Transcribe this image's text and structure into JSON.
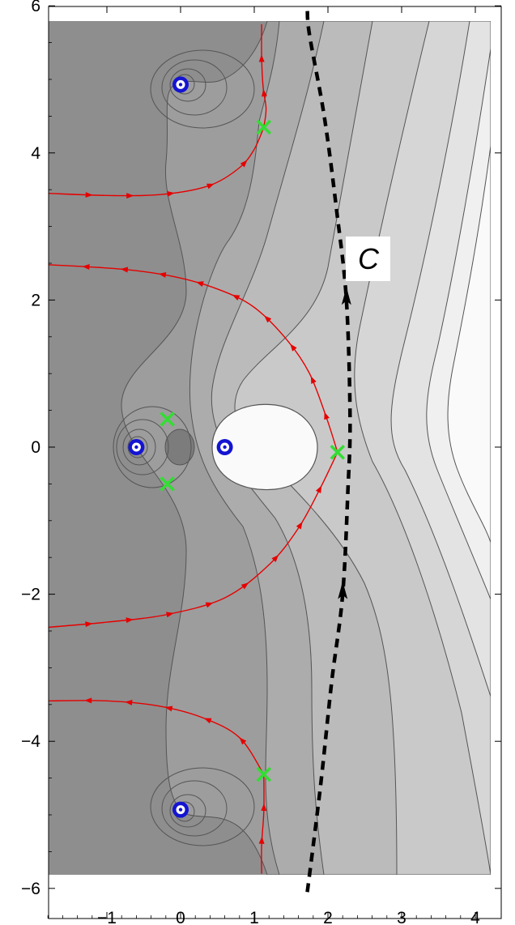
{
  "chart_data": {
    "type": "contour",
    "title": "",
    "xlabel": "",
    "ylabel": "",
    "xlim": [
      -1.8,
      4.2
    ],
    "ylim": [
      -5.8,
      5.8
    ],
    "frame_xlim": [
      -1.8,
      4.2
    ],
    "frame_ylim": [
      -6,
      6
    ],
    "grid": false,
    "x_ticks": [
      -1,
      0,
      1,
      2,
      3,
      4
    ],
    "x_tick_labels": [
      "−1",
      "0",
      "1",
      "2",
      "3",
      "4"
    ],
    "y_ticks": [
      -6,
      -4,
      -2,
      0,
      2,
      4,
      6
    ],
    "y_tick_labels": [
      "−6",
      "−4",
      "−2",
      "0",
      "2",
      "4",
      "6"
    ],
    "poles": [
      {
        "x": 0.0,
        "y": 4.93
      },
      {
        "x": -0.6,
        "y": 0.0
      },
      {
        "x": 0.6,
        "y": 0.0
      },
      {
        "x": 0.0,
        "y": -4.93
      }
    ],
    "saddle_points": [
      {
        "x": 1.13,
        "y": 4.35
      },
      {
        "x": -0.18,
        "y": 0.38
      },
      {
        "x": -0.18,
        "y": -0.5
      },
      {
        "x": 2.13,
        "y": -0.07
      },
      {
        "x": 1.13,
        "y": -4.45
      }
    ],
    "steepest_paths": [
      {
        "direction": "toward saddle",
        "points": [
          [
            -1.8,
            3.45
          ],
          [
            -0.9,
            3.42
          ],
          [
            -0.2,
            3.44
          ],
          [
            0.4,
            3.56
          ],
          [
            0.8,
            3.8
          ],
          [
            1.0,
            4.05
          ],
          [
            1.13,
            4.35
          ]
        ]
      },
      {
        "direction": "away from saddle",
        "points": [
          [
            1.13,
            4.35
          ],
          [
            1.16,
            4.6
          ],
          [
            1.12,
            4.9
          ],
          [
            1.1,
            5.3
          ],
          [
            1.1,
            5.75
          ]
        ]
      },
      {
        "direction": "away from saddle",
        "points": [
          [
            2.13,
            -0.07
          ],
          [
            1.98,
            0.4
          ],
          [
            1.75,
            1.0
          ],
          [
            1.45,
            1.45
          ],
          [
            1.0,
            1.9
          ],
          [
            0.5,
            2.15
          ],
          [
            -0.1,
            2.32
          ],
          [
            -0.8,
            2.42
          ],
          [
            -1.8,
            2.48
          ]
        ]
      },
      {
        "direction": "toward saddle",
        "points": [
          [
            -1.8,
            -2.45
          ],
          [
            -1.0,
            -2.38
          ],
          [
            -0.2,
            -2.28
          ],
          [
            0.6,
            -2.05
          ],
          [
            1.2,
            -1.6
          ],
          [
            1.6,
            -1.1
          ],
          [
            1.9,
            -0.55
          ],
          [
            2.13,
            -0.07
          ]
        ]
      },
      {
        "direction": "away from saddle",
        "points": [
          [
            1.13,
            -4.45
          ],
          [
            0.8,
            -3.95
          ],
          [
            0.3,
            -3.68
          ],
          [
            -0.3,
            -3.52
          ],
          [
            -1.0,
            -3.45
          ],
          [
            -1.8,
            -3.45
          ]
        ]
      },
      {
        "direction": "toward saddle",
        "points": [
          [
            1.1,
            -5.8
          ],
          [
            1.1,
            -5.4
          ],
          [
            1.13,
            -4.95
          ],
          [
            1.13,
            -4.45
          ]
        ]
      }
    ],
    "integration_contour": {
      "label": "C",
      "points": [
        [
          1.72,
          -6.05
        ],
        [
          1.9,
          -4.6
        ],
        [
          2.05,
          -3.2
        ],
        [
          2.2,
          -2.0
        ],
        [
          2.27,
          -0.6
        ],
        [
          2.3,
          0.4
        ],
        [
          2.25,
          2.0
        ],
        [
          2.12,
          3.2
        ],
        [
          1.95,
          4.5
        ],
        [
          1.75,
          5.6
        ],
        [
          1.72,
          5.95
        ]
      ],
      "arrow_at": [
        [
          2.2,
          -2.0
        ],
        [
          2.25,
          2.0
        ]
      ]
    },
    "contour_regions": [
      {
        "level": 1,
        "color": "#8e8e8e"
      },
      {
        "level": 2,
        "color": "#9d9d9d"
      },
      {
        "level": 3,
        "color": "#acacac"
      },
      {
        "level": 4,
        "color": "#bbbbbb"
      },
      {
        "level": 5,
        "color": "#c9c9c9"
      },
      {
        "level": 6,
        "color": "#d6d6d6"
      },
      {
        "level": 7,
        "color": "#e3e3e3"
      },
      {
        "level": 8,
        "color": "#f0f0f0"
      },
      {
        "level": 9,
        "color": "#fafafa"
      }
    ],
    "colors": {
      "path": "#e60000",
      "saddle": "#33dd33",
      "pole": "#1414d2",
      "contour_line": "#555555",
      "integration_contour": "#000000"
    }
  }
}
